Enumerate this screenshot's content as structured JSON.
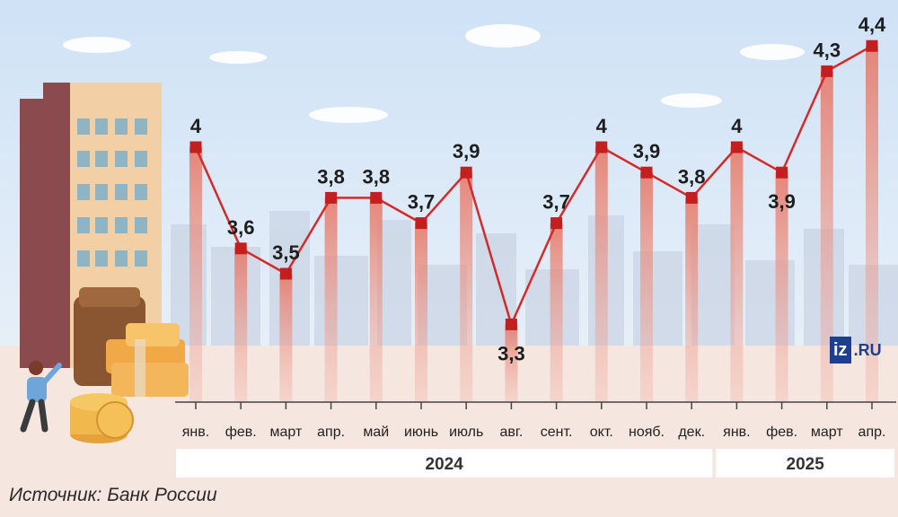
{
  "source_text": "Источник: Банк России",
  "logo": {
    "iz": "iz",
    "ru": ".RU"
  },
  "colors": {
    "line": "#d42a2a",
    "marker": "#c41f1f",
    "bar": "#e98070",
    "sky": "#d7e7f7",
    "ground": "#f6e6df"
  },
  "chart_data": {
    "type": "line",
    "categories": [
      "янв.",
      "фев.",
      "март",
      "апр.",
      "май",
      "июнь",
      "июль",
      "авг.",
      "сент.",
      "окт.",
      "нояб.",
      "дек.",
      "янв.",
      "фев.",
      "март",
      "апр."
    ],
    "year_groups": [
      {
        "label": "2024",
        "start": 0,
        "end": 11
      },
      {
        "label": "2025",
        "start": 12,
        "end": 15
      }
    ],
    "series": [
      {
        "values": [
          4.0,
          3.6,
          3.5,
          3.8,
          3.8,
          3.7,
          3.9,
          3.3,
          3.7,
          4.0,
          3.9,
          3.8,
          4.0,
          3.9,
          4.3,
          4.4
        ]
      }
    ],
    "value_labels": [
      "4",
      "3,6",
      "3,5",
      "3,8",
      "3,8",
      "3,7",
      "3,9",
      "3,3",
      "3,7",
      "4",
      "3,9",
      "3,8",
      "4",
      "3,9",
      "4,3",
      "4,4"
    ],
    "title": "",
    "xlabel": "",
    "ylabel": "",
    "grid": false
  }
}
